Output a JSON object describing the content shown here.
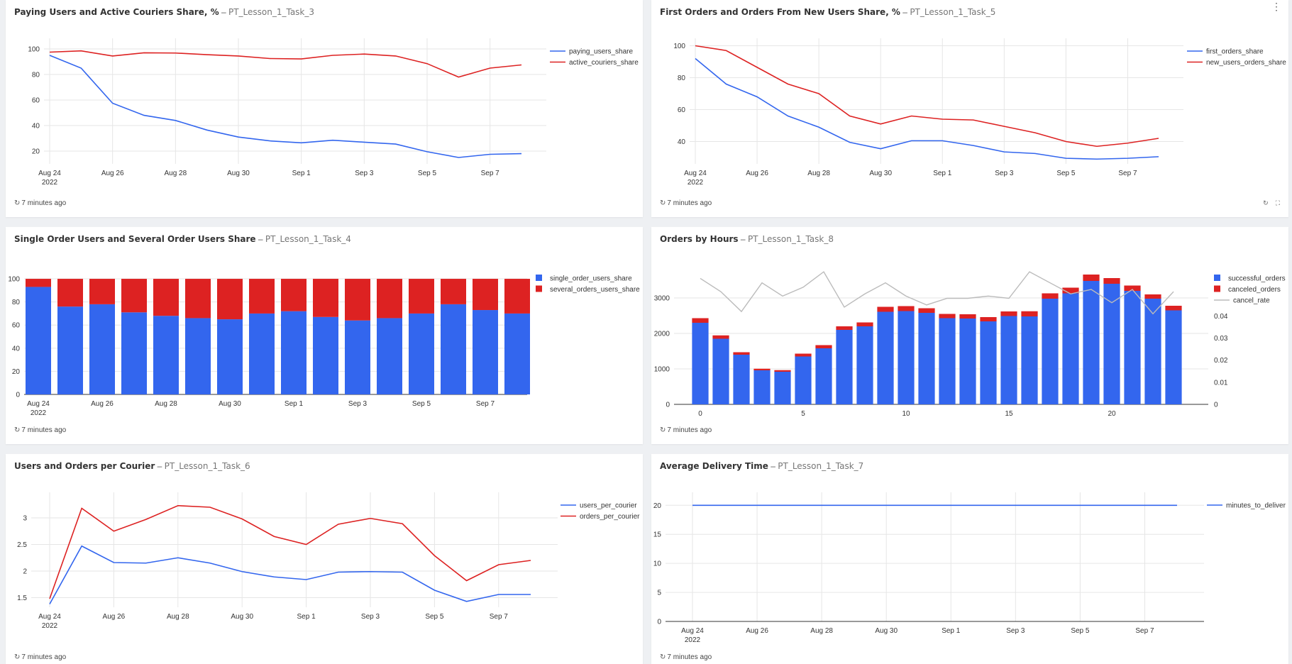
{
  "footer_text": "7 minutes ago",
  "colors": {
    "blue": "#3366ee",
    "red": "#dd2222",
    "gray": "#bbbbbb",
    "grid": "#e6e6e6",
    "axis": "#333333"
  },
  "panels": [
    {
      "title": "Paying Users and Active Couriers Share, %",
      "source": "PT_Lesson_1_Task_3",
      "chart_data": {
        "type": "line",
        "x": [
          "Aug 24",
          "Aug 25",
          "Aug 26",
          "Aug 27",
          "Aug 28",
          "Aug 29",
          "Aug 30",
          "Aug 31",
          "Sep 1",
          "Sep 2",
          "Sep 3",
          "Sep 4",
          "Sep 5",
          "Sep 6",
          "Sep 7",
          "Sep 8"
        ],
        "xticks": [
          {
            "label": "Aug 24",
            "sub": "2022"
          },
          {
            "label": "Aug 26"
          },
          {
            "label": "Aug 28"
          },
          {
            "label": "Aug 30"
          },
          {
            "label": "Sep 1"
          },
          {
            "label": "Sep 3"
          },
          {
            "label": "Sep 5"
          },
          {
            "label": "Sep 7"
          }
        ],
        "yticks": [
          20,
          40,
          60,
          80,
          100
        ],
        "ylim": [
          10,
          105
        ],
        "legend_position": "right",
        "series": [
          {
            "name": "paying_users_share",
            "color": "#3366ee",
            "values": [
              95,
              85,
              57.5,
              48,
              44,
              36.5,
              31,
              28,
              26.5,
              28.5,
              27,
              25.5,
              19.5,
              15,
              17.5,
              18
            ]
          },
          {
            "name": "active_couriers_share",
            "color": "#dd2222",
            "values": [
              97.5,
              98.5,
              94.5,
              97,
              96.8,
              95.5,
              94.5,
              92.5,
              92.2,
              95,
              96,
              94.5,
              88.5,
              78,
              85,
              87.5
            ]
          }
        ]
      }
    },
    {
      "title": "First Orders and Orders From New Users Share, %",
      "source": "PT_Lesson_1_Task_5",
      "chart_data": {
        "type": "line",
        "x": [
          "Aug 24",
          "Aug 25",
          "Aug 26",
          "Aug 27",
          "Aug 28",
          "Aug 29",
          "Aug 30",
          "Aug 31",
          "Sep 1",
          "Sep 2",
          "Sep 3",
          "Sep 4",
          "Sep 5",
          "Sep 6",
          "Sep 7",
          "Sep 8"
        ],
        "xticks": [
          {
            "label": "Aug 24",
            "sub": "2022"
          },
          {
            "label": "Aug 26"
          },
          {
            "label": "Aug 28"
          },
          {
            "label": "Aug 30"
          },
          {
            "label": "Sep 1"
          },
          {
            "label": "Sep 3"
          },
          {
            "label": "Sep 5"
          },
          {
            "label": "Sep 7"
          }
        ],
        "yticks": [
          40,
          60,
          80,
          100
        ],
        "ylim": [
          26,
          102
        ],
        "legend_position": "right",
        "series": [
          {
            "name": "first_orders_share",
            "color": "#3366ee",
            "values": [
              92,
              76,
              68,
              56,
              49,
              39.5,
              35.5,
              40.5,
              40.5,
              37.5,
              33.5,
              32.5,
              29.5,
              29,
              29.5,
              30.5
            ]
          },
          {
            "name": "new_users_orders_share",
            "color": "#dd2222",
            "values": [
              100,
              97,
              86.5,
              76,
              70,
              56,
              51,
              56,
              54,
              53.5,
              49.5,
              45.5,
              40,
              37,
              39,
              42
            ]
          }
        ]
      }
    },
    {
      "title": "Single Order Users and Several Order Users Share",
      "source": "PT_Lesson_1_Task_4",
      "chart_data": {
        "type": "bar",
        "stacked": true,
        "categories": [
          "Aug 24",
          "Aug 25",
          "Aug 26",
          "Aug 27",
          "Aug 28",
          "Aug 29",
          "Aug 30",
          "Aug 31",
          "Sep 1",
          "Sep 2",
          "Sep 3",
          "Sep 4",
          "Sep 5",
          "Sep 6",
          "Sep 7",
          "Sep 8"
        ],
        "xticks": [
          {
            "label": "Aug 24",
            "sub": "2022"
          },
          {
            "label": "Aug 26"
          },
          {
            "label": "Aug 28"
          },
          {
            "label": "Aug 30"
          },
          {
            "label": "Sep 1"
          },
          {
            "label": "Sep 3"
          },
          {
            "label": "Sep 5"
          },
          {
            "label": "Sep 7"
          }
        ],
        "yticks": [
          0,
          20,
          40,
          60,
          80,
          100
        ],
        "ylim": [
          0,
          108
        ],
        "legend_position": "right",
        "series": [
          {
            "name": "single_order_users_share",
            "color": "#3366ee",
            "values": [
              93,
              76,
              78,
              71,
              68,
              66,
              65,
              70,
              72,
              67,
              64,
              66,
              70,
              78,
              73,
              70
            ]
          },
          {
            "name": "several_orders_users_share",
            "color": "#dd2222",
            "values": [
              7,
              24,
              22,
              29,
              32,
              34,
              35,
              30,
              28,
              33,
              36,
              34,
              30,
              22,
              27,
              30
            ]
          }
        ]
      }
    },
    {
      "title": "Orders by Hours",
      "source": "PT_Lesson_1_Task_8",
      "chart_data": {
        "type": "bar",
        "stacked": true,
        "categories": [
          0,
          1,
          2,
          3,
          4,
          5,
          6,
          7,
          8,
          9,
          10,
          11,
          12,
          13,
          14,
          15,
          16,
          17,
          18,
          19,
          20,
          21,
          22,
          23
        ],
        "xticks": [
          {
            "label": "0",
            "v": 0
          },
          {
            "label": "5",
            "v": 5
          },
          {
            "label": "10",
            "v": 10
          },
          {
            "label": "15",
            "v": 15
          },
          {
            "label": "20",
            "v": 20
          }
        ],
        "yticks": [
          0,
          1000,
          2000,
          3000
        ],
        "ylim": [
          0,
          3800
        ],
        "y2ticks": [
          0,
          0.01,
          0.02,
          0.03,
          0.04
        ],
        "y2lim": [
          0,
          0.061
        ],
        "legend_position": "right",
        "series": [
          {
            "name": "successful_orders",
            "color": "#3366ee",
            "values": [
              2300,
              1850,
              1400,
              960,
              920,
              1350,
              1580,
              2100,
              2200,
              2610,
              2630,
              2580,
              2430,
              2420,
              2340,
              2490,
              2480,
              2980,
              3130,
              3480,
              3400,
              3200,
              2980,
              2650
            ]
          },
          {
            "name": "canceled_orders",
            "color": "#dd2222",
            "values": [
              130,
              95,
              70,
              45,
              45,
              80,
              90,
              100,
              110,
              140,
              140,
              130,
              120,
              120,
              120,
              130,
              145,
              150,
              160,
              180,
              160,
              150,
              120,
              130
            ]
          },
          {
            "name": "cancel_rate",
            "color": "#bbbbbb",
            "axis": "right",
            "values": [
              0.057,
              0.051,
              0.042,
              0.055,
              0.049,
              0.053,
              0.06,
              0.044,
              0.05,
              0.055,
              0.049,
              0.045,
              0.048,
              0.048,
              0.049,
              0.048,
              0.06,
              0.055,
              0.05,
              0.052,
              0.046,
              0.052,
              0.041,
              0.051
            ]
          }
        ]
      }
    },
    {
      "title": "Users and Orders per Courier",
      "source": "PT_Lesson_1_Task_6",
      "chart_data": {
        "type": "line",
        "x": [
          "Aug 24",
          "Aug 25",
          "Aug 26",
          "Aug 27",
          "Aug 28",
          "Aug 29",
          "Aug 30",
          "Aug 31",
          "Sep 1",
          "Sep 2",
          "Sep 3",
          "Sep 4",
          "Sep 5",
          "Sep 6",
          "Sep 7",
          "Sep 8"
        ],
        "xticks": [
          {
            "label": "Aug 24",
            "sub": "2022"
          },
          {
            "label": "Aug 26"
          },
          {
            "label": "Aug 28"
          },
          {
            "label": "Aug 30"
          },
          {
            "label": "Sep 1"
          },
          {
            "label": "Sep 3"
          },
          {
            "label": "Sep 5"
          },
          {
            "label": "Sep 7"
          }
        ],
        "yticks": [
          1.5,
          2,
          2.5,
          3
        ],
        "ylim": [
          1.32,
          3.4
        ],
        "legend_position": "right",
        "series": [
          {
            "name": "users_per_courier",
            "color": "#3366ee",
            "values": [
              1.38,
              2.47,
              2.16,
              2.15,
              2.25,
              2.15,
              1.99,
              1.89,
              1.84,
              1.98,
              1.99,
              1.98,
              1.64,
              1.43,
              1.56,
              1.56
            ]
          },
          {
            "name": "orders_per_courier",
            "color": "#dd2222",
            "values": [
              1.48,
              3.18,
              2.75,
              2.97,
              3.23,
              3.2,
              2.98,
              2.65,
              2.5,
              2.88,
              2.99,
              2.89,
              2.29,
              1.82,
              2.12,
              2.2
            ]
          }
        ]
      }
    },
    {
      "title": "Average Delivery Time",
      "source": "PT_Lesson_1_Task_7",
      "chart_data": {
        "type": "line",
        "x": [
          "Aug 24",
          "Aug 25",
          "Aug 26",
          "Aug 27",
          "Aug 28",
          "Aug 29",
          "Aug 30",
          "Aug 31",
          "Sep 1",
          "Sep 2",
          "Sep 3",
          "Sep 4",
          "Sep 5",
          "Sep 6",
          "Sep 7",
          "Sep 8"
        ],
        "xticks": [
          {
            "label": "Aug 24",
            "sub": "2022"
          },
          {
            "label": "Aug 26"
          },
          {
            "label": "Aug 28"
          },
          {
            "label": "Aug 30"
          },
          {
            "label": "Sep 1"
          },
          {
            "label": "Sep 3"
          },
          {
            "label": "Sep 5"
          },
          {
            "label": "Sep 7"
          }
        ],
        "yticks": [
          0,
          5,
          10,
          15,
          20
        ],
        "ylim": [
          0,
          21.5
        ],
        "legend_position": "right",
        "series": [
          {
            "name": "minutes_to_deliver",
            "color": "#3366ee",
            "values": [
              20,
              20,
              20,
              20,
              20,
              20,
              20,
              20,
              20,
              20,
              20,
              20,
              20,
              20,
              20,
              20
            ]
          }
        ]
      }
    }
  ]
}
